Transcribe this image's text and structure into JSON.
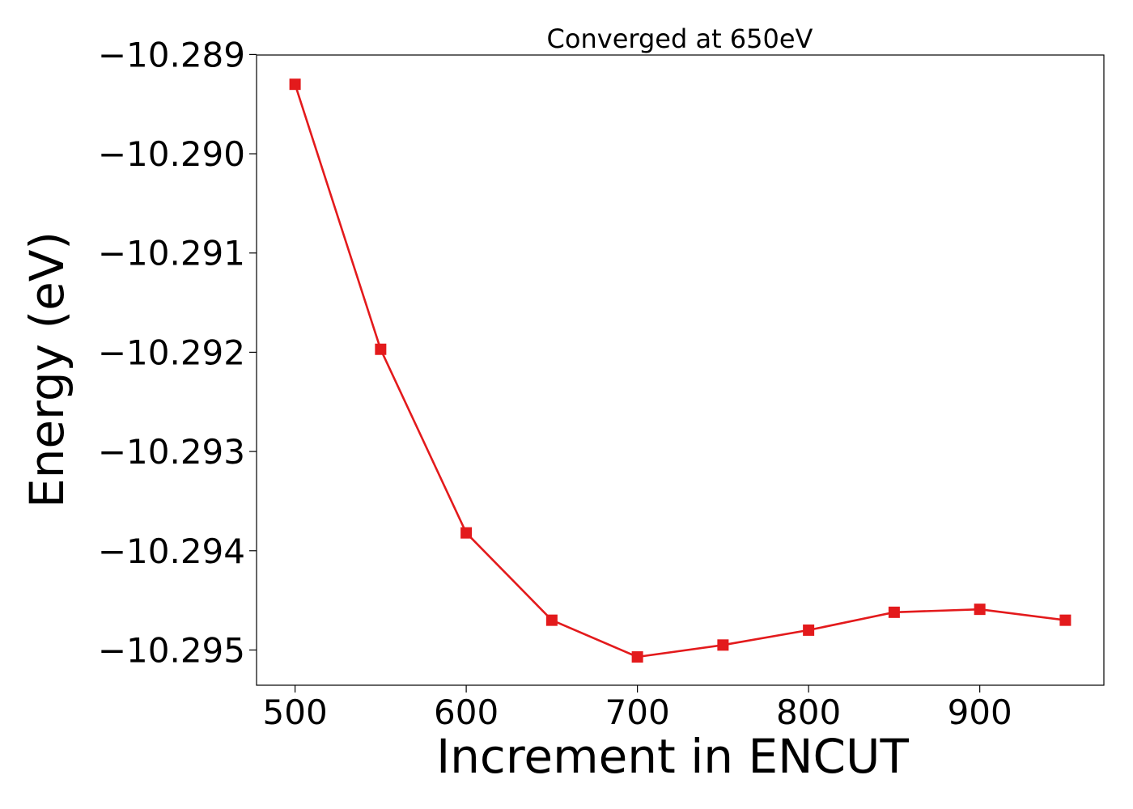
{
  "chart_data": {
    "type": "line",
    "title": "Converged at 650eV",
    "xlabel": "Increment in ENCUT",
    "ylabel": "Energy (eV)",
    "x": [
      500,
      550,
      600,
      650,
      700,
      750,
      800,
      850,
      900,
      950
    ],
    "series": [
      {
        "values": [
          -10.2893,
          -10.29197,
          -10.29382,
          -10.2947,
          -10.29507,
          -10.29495,
          -10.2948,
          -10.29462,
          -10.29459,
          -10.2947
        ],
        "color": "#e31a1c",
        "marker": "square"
      }
    ],
    "xlim": [
      477.5,
      972.5
    ],
    "ylim": [
      -10.295355,
      -10.289005
    ],
    "xticks": [
      500,
      600,
      700,
      800,
      900
    ],
    "xtick_labels": [
      "500",
      "600",
      "700",
      "800",
      "900"
    ],
    "yticks": [
      -10.289,
      -10.29,
      -10.291,
      -10.292,
      -10.293,
      -10.294,
      -10.295
    ],
    "ytick_labels": [
      "−10.289",
      "−10.290",
      "−10.291",
      "−10.292",
      "−10.293",
      "−10.294",
      "−10.295"
    ],
    "grid": false,
    "legend": "none"
  }
}
